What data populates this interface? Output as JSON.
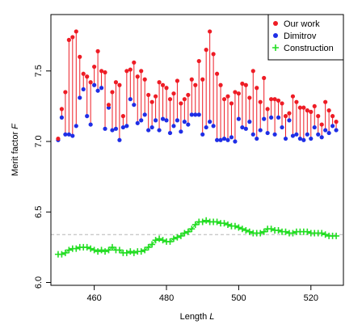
{
  "chart_data": {
    "type": "scatter",
    "title": "",
    "xlabel": "Length",
    "xlabel_var": "L",
    "ylabel": "Merit factor",
    "ylabel_var": "F",
    "xlim": [
      448,
      529
    ],
    "ylim": [
      5.98,
      7.9
    ],
    "xticks": [
      460,
      480,
      500,
      520
    ],
    "yticks": [
      6.0,
      6.5,
      7.0,
      7.5
    ],
    "ytick_labels": [
      "6.0",
      "6.5",
      "7.0",
      "7.5"
    ],
    "reference_line": 6.34,
    "grid": false,
    "legend_position": "top-right",
    "legend": [
      {
        "label": "Our work",
        "marker": "dot",
        "color": "#ee1c25"
      },
      {
        "label": "Dimitrov",
        "marker": "dot",
        "color": "#1f2ee6"
      },
      {
        "label": "Construction",
        "marker": "plus",
        "color": "#22dd22"
      }
    ],
    "x": [
      450,
      451,
      452,
      453,
      454,
      455,
      456,
      457,
      458,
      459,
      460,
      461,
      462,
      463,
      464,
      465,
      466,
      467,
      468,
      469,
      470,
      471,
      472,
      473,
      474,
      475,
      476,
      477,
      478,
      479,
      480,
      481,
      482,
      483,
      484,
      485,
      486,
      487,
      488,
      489,
      490,
      491,
      492,
      493,
      494,
      495,
      496,
      497,
      498,
      499,
      500,
      501,
      502,
      503,
      504,
      505,
      506,
      507,
      508,
      509,
      510,
      511,
      512,
      513,
      514,
      515,
      516,
      517,
      518,
      519,
      520,
      521,
      522,
      523,
      524,
      525,
      526,
      527
    ],
    "series": [
      {
        "name": "Our work",
        "color": "#ee1c25",
        "values": [
          7.02,
          7.23,
          7.35,
          7.72,
          7.74,
          7.78,
          7.6,
          7.48,
          7.46,
          7.42,
          7.53,
          7.64,
          7.5,
          7.49,
          7.26,
          7.35,
          7.42,
          7.4,
          7.18,
          7.5,
          7.51,
          7.56,
          7.46,
          7.5,
          7.44,
          7.33,
          7.28,
          7.32,
          7.42,
          7.4,
          7.38,
          7.3,
          7.34,
          7.43,
          7.27,
          7.3,
          7.33,
          7.44,
          7.4,
          7.57,
          7.44,
          7.65,
          7.78,
          7.62,
          7.48,
          7.4,
          7.3,
          7.32,
          7.27,
          7.35,
          7.34,
          7.41,
          7.4,
          7.31,
          7.5,
          7.38,
          7.28,
          7.45,
          7.23,
          7.3,
          7.3,
          7.29,
          7.27,
          7.18,
          7.2,
          7.32,
          7.28,
          7.24,
          7.24,
          7.22,
          7.21,
          7.25,
          7.18,
          7.12,
          7.28,
          7.22,
          7.18,
          7.14
        ]
      },
      {
        "name": "Dimitrov",
        "color": "#1f2ee6",
        "values": [
          7.01,
          7.17,
          7.05,
          7.05,
          7.04,
          7.11,
          7.31,
          7.37,
          7.18,
          7.12,
          7.4,
          7.36,
          7.38,
          7.09,
          7.24,
          7.08,
          7.09,
          7.01,
          7.1,
          7.11,
          7.3,
          7.26,
          7.13,
          7.15,
          7.19,
          7.08,
          7.1,
          7.15,
          7.08,
          7.16,
          7.15,
          7.06,
          7.11,
          7.15,
          7.07,
          7.14,
          7.12,
          7.19,
          7.19,
          7.19,
          7.05,
          7.1,
          7.14,
          7.11,
          7.01,
          7.01,
          7.02,
          7.01,
          7.03,
          7.0,
          7.16,
          7.1,
          7.09,
          7.14,
          7.05,
          7.02,
          7.08,
          7.16,
          7.06,
          7.17,
          7.05,
          7.17,
          7.1,
          7.02,
          7.15,
          7.04,
          7.05,
          7.02,
          7.01,
          7.05,
          7.02,
          7.1,
          7.05,
          7.03,
          7.08,
          7.06,
          7.11,
          7.08
        ]
      },
      {
        "name": "Construction",
        "color": "#22dd22",
        "values": [
          6.2,
          6.2,
          6.21,
          6.23,
          6.24,
          6.24,
          6.25,
          6.25,
          6.25,
          6.24,
          6.23,
          6.22,
          6.23,
          6.22,
          6.23,
          6.25,
          6.23,
          6.23,
          6.21,
          6.21,
          6.22,
          6.21,
          6.22,
          6.22,
          6.23,
          6.25,
          6.27,
          6.3,
          6.31,
          6.3,
          6.29,
          6.29,
          6.31,
          6.32,
          6.33,
          6.35,
          6.36,
          6.38,
          6.41,
          6.43,
          6.43,
          6.44,
          6.43,
          6.43,
          6.43,
          6.42,
          6.42,
          6.41,
          6.4,
          6.4,
          6.39,
          6.38,
          6.37,
          6.36,
          6.35,
          6.35,
          6.35,
          6.36,
          6.38,
          6.38,
          6.37,
          6.37,
          6.36,
          6.36,
          6.35,
          6.35,
          6.36,
          6.36,
          6.36,
          6.36,
          6.35,
          6.35,
          6.35,
          6.35,
          6.34,
          6.33,
          6.33,
          6.33
        ]
      }
    ]
  }
}
